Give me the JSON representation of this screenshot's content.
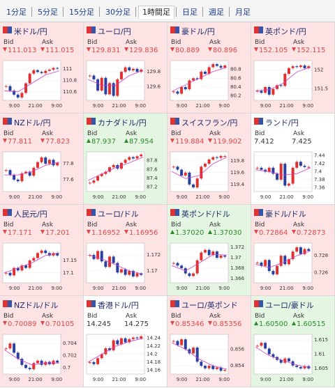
{
  "tabs": [
    "1分足",
    "5分足",
    "15分足",
    "30分足",
    "1時間足",
    "日足",
    "週足",
    "月足"
  ],
  "selected_tab": 4,
  "labels": {
    "bid": "Bid",
    "ask": "Ask"
  },
  "chart_xlabels": [
    "9:00",
    "21:00",
    "9:00"
  ],
  "cards": [
    {
      "pair": "米ドル/円",
      "bid": "111.013",
      "ask": "111.015",
      "direction": "down",
      "chart": {
        "ylim": [
          110.45,
          111.15
        ],
        "yticks": [
          111,
          110.8,
          110.6
        ],
        "close": [
          110.7,
          110.62,
          110.55,
          110.5,
          110.58,
          110.75,
          110.92,
          110.98,
          110.95,
          110.93,
          110.97,
          110.99,
          111.02,
          111.01
        ],
        "ma": [
          110.62,
          110.6,
          110.75,
          110.9,
          110.97
        ]
      }
    },
    {
      "pair": "ユーロ/円",
      "bid": "129.831",
      "ask": "129.836",
      "direction": "down",
      "chart": {
        "ylim": [
          129.42,
          129.95
        ],
        "yticks": [
          129.8,
          129.6
        ],
        "close": [
          129.75,
          129.7,
          129.55,
          129.72,
          129.5,
          129.65,
          129.48,
          129.7,
          129.8,
          129.86,
          129.82,
          129.84,
          129.8,
          129.83
        ],
        "ma": [
          129.7,
          129.62,
          129.62,
          129.75,
          129.82
        ]
      }
    },
    {
      "pair": "豪ドル/円",
      "bid": "80.889",
      "ask": "80.896",
      "direction": "down",
      "chart": {
        "ylim": [
          80.1,
          81.0
        ],
        "yticks": [
          80.8,
          80.6,
          80.4,
          80.2
        ],
        "close": [
          80.3,
          80.25,
          80.4,
          80.35,
          80.55,
          80.6,
          80.58,
          80.75,
          80.7,
          80.85,
          80.92,
          80.88,
          80.84,
          80.89
        ],
        "ma": [
          80.3,
          80.45,
          80.6,
          80.75,
          80.85
        ]
      }
    },
    {
      "pair": "英ポンド/円",
      "bid": "152.105",
      "ask": "152.115",
      "direction": "down",
      "chart": {
        "ylim": [
          151.2,
          152.25
        ],
        "yticks": [
          152,
          151.5
        ],
        "close": [
          151.45,
          151.4,
          151.55,
          151.35,
          151.5,
          151.6,
          151.58,
          151.9,
          152.05,
          152.1,
          152.08,
          152.12,
          152.05,
          152.1
        ],
        "ma": [
          151.45,
          151.48,
          151.65,
          151.95,
          152.08
        ]
      }
    },
    {
      "pair": "NZドル/円",
      "bid": "77.811",
      "ask": "77.823",
      "direction": "down",
      "chart": {
        "ylim": [
          77.45,
          77.95
        ],
        "yticks": [
          77.8,
          77.6
        ],
        "close": [
          77.72,
          77.66,
          77.6,
          77.58,
          77.68,
          77.7,
          77.65,
          77.75,
          77.82,
          77.88,
          77.8,
          77.85,
          77.78,
          77.81
        ],
        "ma": [
          77.66,
          77.66,
          77.7,
          77.78,
          77.82
        ]
      }
    },
    {
      "pair": "カナダドル/円",
      "bid": "87.937",
      "ask": "87.954",
      "direction": "up",
      "chart": {
        "ylim": [
          87.1,
          88.0
        ],
        "yticks": [
          87.8,
          87.6,
          87.4,
          87.2
        ],
        "close": [
          87.3,
          87.35,
          87.45,
          87.5,
          87.55,
          87.65,
          87.7,
          87.62,
          87.75,
          87.82,
          87.88,
          87.85,
          87.9,
          87.94
        ],
        "ma": [
          87.35,
          87.5,
          87.64,
          87.75,
          87.88
        ]
      }
    },
    {
      "pair": "スイスフラン/円",
      "bid": "119.884",
      "ask": "119.902",
      "direction": "down",
      "chart": {
        "ylim": [
          119.28,
          119.95
        ],
        "yticks": [
          119.8,
          119.6,
          119.4
        ],
        "close": [
          119.7,
          119.65,
          119.55,
          119.6,
          119.4,
          119.35,
          119.5,
          119.7,
          119.75,
          119.82,
          119.86,
          119.85,
          119.88,
          119.88
        ],
        "ma": [
          119.62,
          119.5,
          119.55,
          119.75,
          119.86
        ]
      }
    },
    {
      "pair": "ランド/円",
      "bid": "7.412",
      "ask": "7.425",
      "direction": "flat",
      "chart": {
        "ylim": [
          7.35,
          7.45
        ],
        "yticks": [
          7.44,
          7.42,
          7.4,
          7.38,
          7.36
        ],
        "close": [
          7.41,
          7.405,
          7.4,
          7.41,
          7.395,
          7.38,
          7.42,
          7.365,
          7.37,
          7.41,
          7.425,
          7.415,
          7.412,
          7.412
        ],
        "ma": [
          7.405,
          7.4,
          7.392,
          7.395,
          7.41
        ]
      }
    },
    {
      "pair": "人民元/円",
      "bid": "17.171",
      "ask": "17.201",
      "direction": "down",
      "chart": {
        "ylim": [
          17.06,
          17.22
        ],
        "yticks": [
          17.15,
          17.1
        ],
        "close": [
          17.1,
          17.09,
          17.12,
          17.11,
          17.13,
          17.12,
          17.15,
          17.16,
          17.18,
          17.19,
          17.18,
          17.17,
          17.18,
          17.17
        ],
        "ma": [
          17.1,
          17.12,
          17.14,
          17.17,
          17.18
        ]
      }
    },
    {
      "pair": "ユーロ/ドル",
      "bid": "1.16952",
      "ask": "1.16956",
      "direction": "down",
      "chart": {
        "ylim": [
          1.1685,
          1.1735
        ],
        "yticks": [
          1.172,
          1.17
        ],
        "close": [
          1.172,
          1.1715,
          1.1725,
          1.1712,
          1.1705,
          1.1718,
          1.171,
          1.1698,
          1.1702,
          1.1695,
          1.17,
          1.1693,
          1.1697,
          1.1695
        ],
        "ma": [
          1.172,
          1.1715,
          1.1708,
          1.17,
          1.1696
        ]
      }
    },
    {
      "pair": "英ポンド/ドル",
      "bid": "1.37020",
      "ask": "1.37030",
      "direction": "up",
      "chart": {
        "ylim": [
          1.3652,
          1.3728
        ],
        "yticks": [
          1.372,
          1.37,
          1.368,
          1.366
        ],
        "close": [
          1.369,
          1.3685,
          1.368,
          1.367,
          1.3665,
          1.367,
          1.3695,
          1.371,
          1.3715,
          1.3705,
          1.3712,
          1.37,
          1.3704,
          1.3702
        ],
        "ma": [
          1.3685,
          1.3675,
          1.369,
          1.3706,
          1.3705
        ]
      }
    },
    {
      "pair": "豪ドル/ドル",
      "bid": "0.72864",
      "ask": "0.72873",
      "direction": "down",
      "chart": {
        "ylim": [
          0.7248,
          0.7295
        ],
        "yticks": [
          0.728,
          0.726
        ],
        "close": [
          0.7272,
          0.7268,
          0.7275,
          0.7262,
          0.7258,
          0.7268,
          0.728,
          0.727,
          0.7276,
          0.7285,
          0.729,
          0.7282,
          0.7288,
          0.7286
        ],
        "ma": [
          0.727,
          0.7266,
          0.7272,
          0.728,
          0.7286
        ]
      }
    },
    {
      "pair": "NZドル/ドル",
      "bid": "0.70089",
      "ask": "0.70105",
      "direction": "down",
      "chart": {
        "ylim": [
          0.699,
          0.7055
        ],
        "yticks": [
          0.704,
          0.702,
          0.7
        ],
        "close": [
          0.7032,
          0.704,
          0.7025,
          0.7015,
          0.7005,
          0.7,
          0.6998,
          0.7008,
          0.7012,
          0.7005,
          0.701,
          0.7006,
          0.7012,
          0.7009
        ],
        "ma": [
          0.703,
          0.7015,
          0.7005,
          0.7008,
          0.7008
        ]
      }
    },
    {
      "pair": "香港ドル/円",
      "bid": "14.245",
      "ask": "14.275",
      "direction": "flat",
      "chart": {
        "ylim": [
          14.15,
          14.25
        ],
        "yticks": [
          14.24,
          14.22,
          14.2,
          14.18,
          14.16
        ],
        "close": [
          14.18,
          14.175,
          14.19,
          14.2,
          14.215,
          14.21,
          14.235,
          14.225,
          14.24,
          14.23,
          14.238,
          14.242,
          14.24,
          14.245
        ],
        "ma": [
          14.18,
          14.2,
          14.22,
          14.232,
          14.24
        ]
      }
    },
    {
      "pair": "ユーロ/英ポンド",
      "bid": "0.85346",
      "ask": "0.85356",
      "direction": "down",
      "chart": {
        "ylim": [
          0.853,
          0.8578
        ],
        "yticks": [
          0.856,
          0.854
        ],
        "close": [
          0.857,
          0.8565,
          0.8572,
          0.856,
          0.8555,
          0.8562,
          0.8545,
          0.854,
          0.8537,
          0.854,
          0.8536,
          0.8538,
          0.8534,
          0.8535
        ],
        "ma": [
          0.8568,
          0.856,
          0.8548,
          0.854,
          0.8536
        ]
      }
    },
    {
      "pair": "ユーロ/豪ドル",
      "bid": "1.60500",
      "ask": "1.60515",
      "direction": "up",
      "chart": {
        "ylim": [
          1.603,
          1.617
        ],
        "yticks": [
          1.615,
          1.61,
          1.605
        ],
        "close": [
          1.613,
          1.614,
          1.612,
          1.61,
          1.609,
          1.608,
          1.607,
          1.6085,
          1.6075,
          1.606,
          1.6055,
          1.605,
          1.6058,
          1.605
        ],
        "ma": [
          1.6125,
          1.6095,
          1.6078,
          1.6062,
          1.6053
        ]
      }
    }
  ]
}
